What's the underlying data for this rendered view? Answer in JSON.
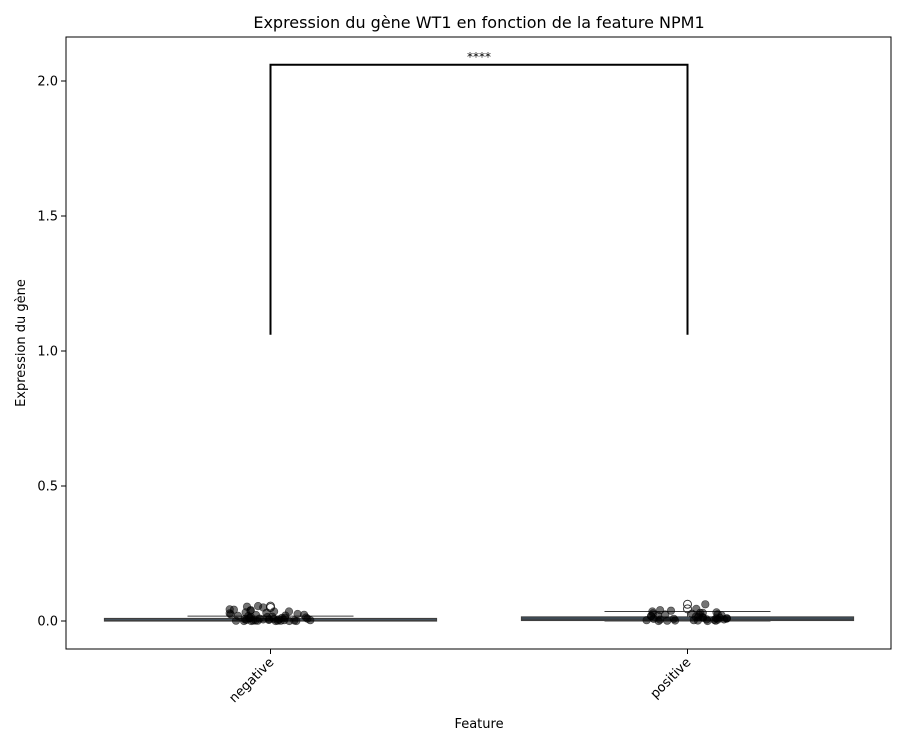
{
  "chart_data": {
    "type": "box",
    "title": "Expression du gène WT1 en fonction de la feature NPM1",
    "xlabel": "Feature",
    "ylabel": "Expression du gène",
    "categories": [
      "negative",
      "positive"
    ],
    "ylim": [
      -0.1,
      2.16
    ],
    "yticks": [
      0.0,
      0.5,
      1.0,
      1.5,
      2.0
    ],
    "ytick_labels": [
      "0.0",
      "0.5",
      "1.0",
      "1.5",
      "2.0"
    ],
    "grid": false,
    "boxes": [
      {
        "category": "negative",
        "whisker_low": 0.0,
        "q1": 0.0,
        "median": 0.002,
        "q3": 0.005,
        "whisker_high": 0.018,
        "fill_color": "#4a5866"
      },
      {
        "category": "positive",
        "whisker_low": 0.0,
        "q1": 0.002,
        "median": 0.007,
        "q3": 0.015,
        "whisker_high": 0.035,
        "fill_color": "#3e5668"
      }
    ],
    "outliers": [
      {
        "category": "negative",
        "values": [
          0.05,
          0.055
        ]
      },
      {
        "category": "positive",
        "values": [
          0.062,
          0.045
        ]
      }
    ],
    "points": [
      {
        "category": "negative",
        "values": [
          0.05,
          0.043,
          0.055,
          0.053,
          0.04,
          0.032,
          0.035,
          0.028,
          0.025,
          0.022,
          0.02,
          0.018,
          0.015,
          0.012,
          0.01,
          0.008,
          0.006,
          0.004,
          0.003,
          0.002,
          0.001,
          0.0,
          0.0,
          0.0,
          0.001,
          0.002,
          0.003,
          0.005,
          0.007,
          0.009,
          0.011,
          0.013,
          0.016,
          0.019,
          0.023,
          0.026,
          0.03,
          0.035,
          0.038,
          0.042,
          0.015,
          0.012,
          0.009,
          0.006,
          0.004,
          0.002,
          0.001,
          0.0,
          0.0,
          0.001
        ]
      },
      {
        "category": "positive",
        "values": [
          0.062,
          0.045,
          0.038,
          0.035,
          0.032,
          0.03,
          0.028,
          0.025,
          0.022,
          0.02,
          0.018,
          0.016,
          0.014,
          0.012,
          0.01,
          0.008,
          0.006,
          0.005,
          0.004,
          0.003,
          0.002,
          0.001,
          0.0,
          0.0,
          0.001,
          0.003,
          0.006,
          0.009,
          0.012,
          0.015,
          0.018,
          0.021,
          0.024,
          0.027,
          0.03,
          0.04,
          0.01,
          0.008,
          0.005,
          0.002
        ]
      }
    ],
    "significance": {
      "label": "****",
      "bracket_bottom": 1.06,
      "bracket_top": 2.06
    },
    "colors": {
      "box_fill": "#4a5866",
      "box_edge": "#3f3f3f",
      "points": "#000000"
    }
  }
}
